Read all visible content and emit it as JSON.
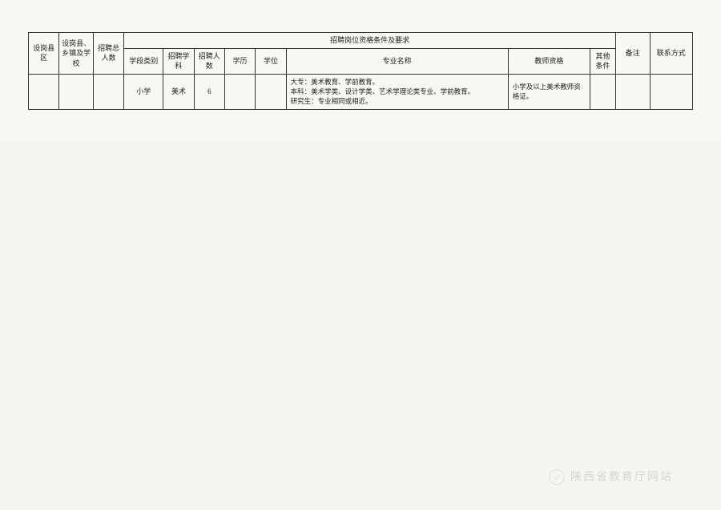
{
  "table": {
    "headers": {
      "county": "设岗县区",
      "school": "设岗县、乡镇及学校",
      "total_count": "招聘总人数",
      "requirements_header": "招聘岗位资格条件及要求",
      "notes": "备注",
      "contact": "联系方式",
      "level_type": "学段类别",
      "subject": "招聘学科",
      "recruit_count": "招聘人数",
      "education": "学历",
      "degree": "学位",
      "major": "专业名称",
      "teacher_cert": "教师资格",
      "other_cond": "其他条件"
    },
    "row": {
      "county": "",
      "school": "",
      "total_count": "",
      "level_type": "小学",
      "subject": "美术",
      "recruit_count": "6",
      "education": "",
      "degree": "",
      "major": "大专：美术教育、学前教育。\n本科：美术学类、设计学类、艺术学理论类专业、学前教育。\n研究生：专业相同或相近。",
      "teacher_cert": "小学及以上美术教师资格证。",
      "other_cond": "",
      "notes": "",
      "contact": ""
    }
  },
  "watermark": {
    "text": "陕西省教育厅网站"
  },
  "styling": {
    "background_color": "#f9f7f2",
    "border_color": "#333333",
    "text_color": "#222222",
    "header_fontsize": 9,
    "cell_fontsize": 9,
    "major_fontsize": 8.5,
    "watermark_color": "rgba(180,180,170,0.5)",
    "watermark_fontsize": 14,
    "col_widths": {
      "county": 36,
      "school": 40,
      "total_count": 36,
      "level_type": 46,
      "subject": 36,
      "recruit_count": 36,
      "education": 36,
      "degree": 36,
      "major": 260,
      "teacher_cert": 96,
      "other_cond": 30,
      "notes": 40,
      "contact": 50
    }
  }
}
